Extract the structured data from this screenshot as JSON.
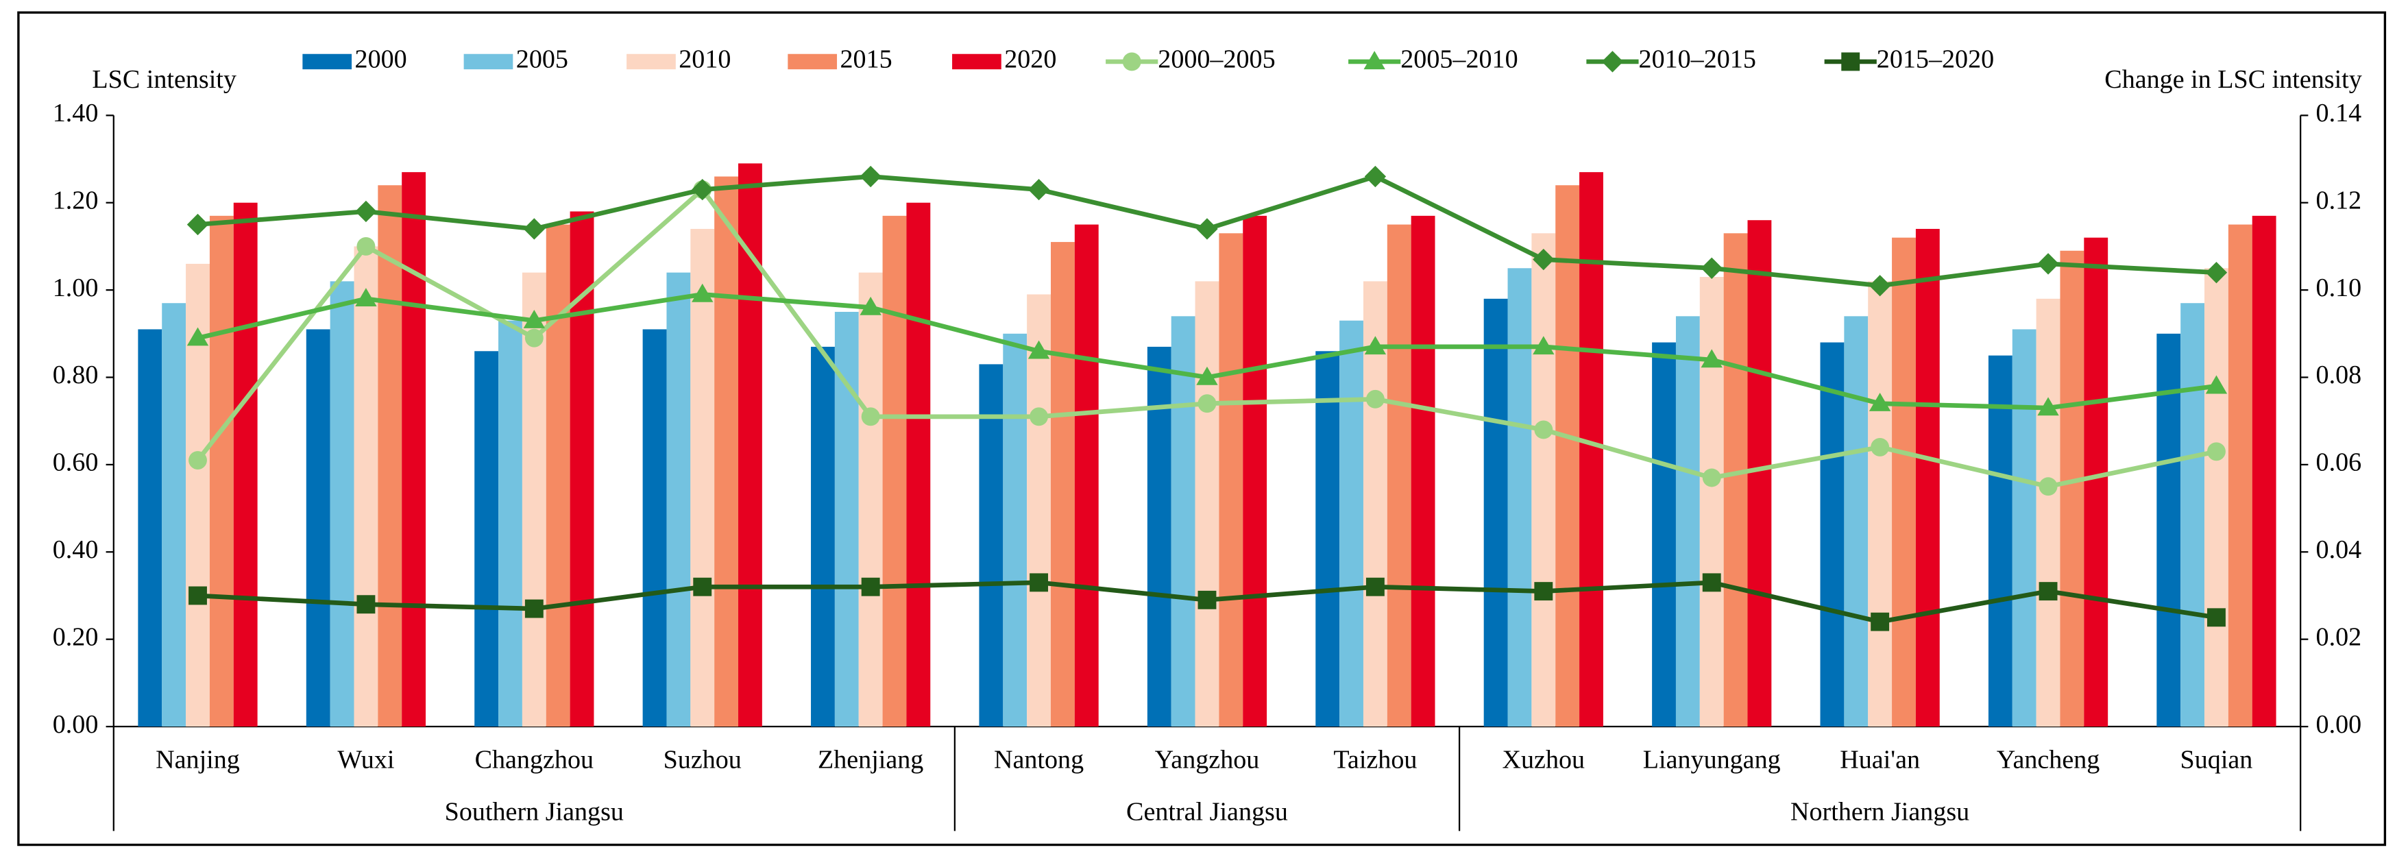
{
  "chart_data": {
    "type": "bar",
    "y_label": "LSC intensity",
    "y2_label": "Change in LSC intensity",
    "categories": [
      "Nanjing",
      "Wuxi",
      "Changzhou",
      "Suzhou",
      "Zhenjiang",
      "Nantong",
      "Yangzhou",
      "Taizhou",
      "Xuzhou",
      "Lianyungang",
      "Huai'an",
      "Yancheng",
      "Suqian"
    ],
    "groups": [
      {
        "name": "Southern Jiangsu",
        "size": 5
      },
      {
        "name": "Central Jiangsu",
        "size": 3
      },
      {
        "name": "Northern Jiangsu",
        "size": 5
      }
    ],
    "series": [
      {
        "name": "2000",
        "type": "bar",
        "color": "#0070b6",
        "values": [
          0.91,
          0.91,
          0.86,
          0.91,
          0.87,
          0.83,
          0.87,
          0.86,
          0.98,
          0.88,
          0.88,
          0.85,
          0.9
        ]
      },
      {
        "name": "2005",
        "type": "bar",
        "color": "#73c2e0",
        "values": [
          0.97,
          1.02,
          0.93,
          1.04,
          0.95,
          0.9,
          0.94,
          0.93,
          1.05,
          0.94,
          0.94,
          0.91,
          0.97
        ]
      },
      {
        "name": "2010",
        "type": "bar",
        "color": "#fcd6c2",
        "values": [
          1.06,
          1.1,
          1.04,
          1.14,
          1.04,
          0.99,
          1.02,
          1.02,
          1.13,
          1.03,
          1.02,
          0.98,
          1.05
        ]
      },
      {
        "name": "2015",
        "type": "bar",
        "color": "#f58a63",
        "values": [
          1.17,
          1.24,
          1.15,
          1.26,
          1.17,
          1.11,
          1.13,
          1.15,
          1.24,
          1.13,
          1.12,
          1.09,
          1.15
        ]
      },
      {
        "name": "2020",
        "type": "bar",
        "color": "#e60020",
        "values": [
          1.2,
          1.27,
          1.18,
          1.29,
          1.2,
          1.15,
          1.17,
          1.17,
          1.27,
          1.16,
          1.14,
          1.12,
          1.17
        ]
      },
      {
        "name": "2000–2005",
        "type": "line",
        "axis": "y2",
        "marker": "circle",
        "color": "#9dd483",
        "values": [
          0.061,
          0.11,
          0.089,
          0.123,
          0.071,
          0.071,
          0.074,
          0.075,
          0.068,
          0.057,
          0.064,
          0.055,
          0.063
        ]
      },
      {
        "name": "2005–2010",
        "type": "line",
        "axis": "y2",
        "marker": "triangle",
        "color": "#50b546",
        "values": [
          0.089,
          0.098,
          0.093,
          0.099,
          0.096,
          0.086,
          0.08,
          0.087,
          0.087,
          0.084,
          0.074,
          0.073,
          0.078
        ]
      },
      {
        "name": "2010–2015",
        "type": "line",
        "axis": "y2",
        "marker": "diamond",
        "color": "#3a8e30",
        "values": [
          0.115,
          0.118,
          0.114,
          0.123,
          0.126,
          0.123,
          0.114,
          0.126,
          0.107,
          0.105,
          0.101,
          0.106,
          0.104
        ]
      },
      {
        "name": "2015–2020",
        "type": "line",
        "axis": "y2",
        "marker": "square",
        "color": "#235a18",
        "values": [
          0.03,
          0.028,
          0.027,
          0.032,
          0.032,
          0.033,
          0.029,
          0.032,
          0.031,
          0.033,
          0.024,
          0.031,
          0.025
        ]
      }
    ],
    "ylim": [
      0,
      1.4
    ],
    "yticks": [
      {
        "value": 0,
        "label": "0.00"
      },
      {
        "value": 0.2,
        "label": "0.20"
      },
      {
        "value": 0.4,
        "label": "0.40"
      },
      {
        "value": 0.6,
        "label": "0.60"
      },
      {
        "value": 0.8,
        "label": "0.80"
      },
      {
        "value": 1,
        "label": "1.00"
      },
      {
        "value": 1.2,
        "label": "1.20"
      },
      {
        "value": 1.4,
        "label": "1.40"
      }
    ],
    "y2lim": [
      0,
      0.14
    ],
    "y2ticks": [
      {
        "value": 0,
        "label": "0.00"
      },
      {
        "value": 0.02,
        "label": "0.02"
      },
      {
        "value": 0.04,
        "label": "0.04"
      },
      {
        "value": 0.06,
        "label": "0.06"
      },
      {
        "value": 0.08,
        "label": "0.08"
      },
      {
        "value": 0.1,
        "label": "0.10"
      },
      {
        "value": 0.12,
        "label": "0.12"
      },
      {
        "value": 0.14,
        "label": "0.14"
      }
    ],
    "grid": false,
    "legend": "top"
  }
}
